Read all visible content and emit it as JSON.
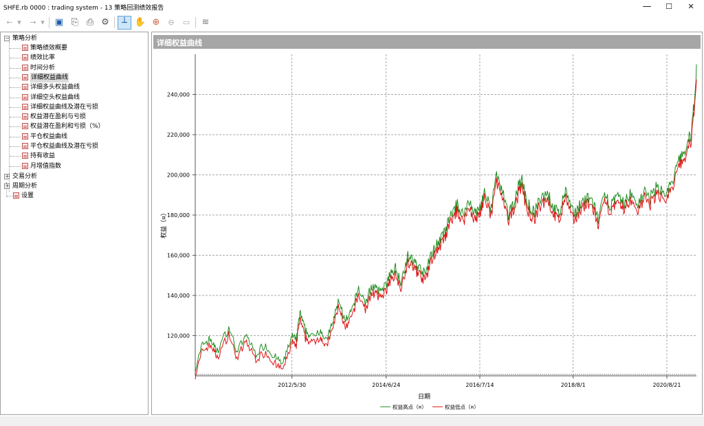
{
  "window": {
    "title": "SHFE.rb 0000 : trading system - 13 策略回测绩效报告",
    "minimize_glyph": "—",
    "maximize_glyph": "☐",
    "close_glyph": "✕"
  },
  "toolbar": {
    "icons": [
      "back-arrow-icon",
      "dropdown-icon",
      "forward-arrow-icon",
      "dropdown-icon",
      "save-icon",
      "export-icon",
      "print-icon",
      "settings-gear-icon",
      "crosshair-cursor-icon",
      "pan-hand-icon",
      "zoom-in-icon",
      "zoom-out-icon",
      "zoom-fit-icon",
      "chart-style-icon"
    ],
    "glyphs": {
      "back": "←",
      "dropdown": "▾",
      "forward": "→",
      "save": "▣",
      "export": "⎘",
      "print": "⎙",
      "settings": "⚙",
      "crosshair": "┴",
      "hand": "✋",
      "zoom_in": "⊕",
      "zoom_out": "⊖",
      "zoom_fit": "▭",
      "chart_style": "≋"
    }
  },
  "tree": {
    "root_expanded_glyph": "−",
    "collapsed_glyph": "+",
    "strategy_analysis": {
      "label": "策略分析",
      "items": [
        "策略绩效概要",
        "绩效比率",
        "时间分析",
        "详细权益曲线",
        "详细多头权益曲线",
        "详细空头权益曲线",
        "详细权益曲线及潜在亏损",
        "权益潜在盈利与亏损",
        "权益潜在盈利和亏损（%）",
        "平仓权益曲线",
        "平仓权益曲线及潜在亏损",
        "持有收益",
        "月增值指数"
      ],
      "selected_index": 3
    },
    "trade_analysis": {
      "label": "交易分析"
    },
    "period_analysis": {
      "label": "周期分析"
    },
    "settings": {
      "label": "设置"
    }
  },
  "panel": {
    "title": "详细权益曲线"
  },
  "colors": {
    "high_series": "#1e8c1e",
    "low_series": "#e01010",
    "panel_header": "#a6a6a6",
    "grid": "#8a8a8a"
  },
  "chart_data": {
    "type": "line",
    "title": "",
    "xlabel": "日期",
    "ylabel": "权益（¤）",
    "x_tick_labels": [
      "2012/5/30",
      "2014/6/24",
      "2016/7/14",
      "2018/8/1",
      "2020/8/21"
    ],
    "y_tick_labels": [
      "120,000",
      "140,000",
      "160,000",
      "180,000",
      "200,000",
      "220,000",
      "240,000"
    ],
    "y_ticks": [
      120000,
      140000,
      160000,
      180000,
      200000,
      220000,
      240000
    ],
    "ylim": [
      100000,
      260000
    ],
    "grid": true,
    "legend_position": "bottom-center",
    "x_range": [
      "2010/4/16",
      "2021/4/15"
    ],
    "x_ticks": [
      "2012/5/30",
      "2014/6/24",
      "2016/7/14",
      "2018/8/1",
      "2020/8/21"
    ],
    "series": [
      {
        "name": "权益高点（¤）",
        "color": "#1e8c1e"
      },
      {
        "name": "权益低点（¤）",
        "color": "#e01010"
      }
    ],
    "x": [
      "2010/4/16",
      "2010/6/15",
      "2010/8/20",
      "2010/10/8",
      "2011/1/10",
      "2011/3/15",
      "2011/6/1",
      "2011/8/15",
      "2011/11/1",
      "2012/1/10",
      "2012/3/20",
      "2012/5/30",
      "2012/7/1",
      "2012/8/1",
      "2012/9/15",
      "2012/11/1",
      "2013/1/15",
      "2013/3/1",
      "2013/4/20",
      "2013/6/10",
      "2013/8/1",
      "2013/9/20",
      "2013/11/15",
      "2014/1/15",
      "2014/3/1",
      "2014/4/20",
      "2014/6/24",
      "2014/7/20",
      "2014/9/1",
      "2014/10/20",
      "2014/12/15",
      "2015/2/1",
      "2015/3/15",
      "2015/5/1",
      "2015/6/20",
      "2015/8/10",
      "2015/10/1",
      "2015/11/20",
      "2016/1/10",
      "2016/3/1",
      "2016/4/20",
      "2016/6/10",
      "2016/7/14",
      "2016/8/20",
      "2016/10/10",
      "2016/11/25",
      "2017/1/15",
      "2017/3/1",
      "2017/4/20",
      "2017/6/10",
      "2017/8/1",
      "2017/9/20",
      "2017/11/10",
      "2018/1/1",
      "2018/2/20",
      "2018/4/10",
      "2018/6/1",
      "2018/8/1",
      "2018/9/20",
      "2018/11/10",
      "2019/1/1",
      "2019/2/20",
      "2019/4/10",
      "2019/6/1",
      "2019/7/20",
      "2019/9/10",
      "2019/11/1",
      "2020/1/1",
      "2020/2/20",
      "2020/4/10",
      "2020/6/1",
      "2020/8/21",
      "2020/10/10",
      "2020/12/1",
      "2021/1/20",
      "2021/3/10",
      "2021/4/15"
    ],
    "values": [
      101000,
      114000,
      116000,
      110000,
      122000,
      110000,
      118000,
      109000,
      113000,
      107000,
      104000,
      118000,
      115000,
      129000,
      120000,
      117000,
      121000,
      115000,
      124000,
      136000,
      124000,
      130000,
      141000,
      134000,
      143000,
      140000,
      143000,
      147000,
      152000,
      145000,
      157000,
      155000,
      152000,
      148000,
      158000,
      164000,
      168000,
      177000,
      183000,
      178000,
      185000,
      178000,
      182000,
      189000,
      180000,
      198000,
      188000,
      177000,
      186000,
      196000,
      183000,
      179000,
      185000,
      190000,
      182000,
      178000,
      190000,
      178000,
      183000,
      186000,
      185000,
      176000,
      187000,
      183000,
      186000,
      184000,
      188000,
      183000,
      190000,
      186000,
      192000,
      189000,
      195000,
      206000,
      210000,
      220000,
      250000
    ],
    "spread": 2500
  },
  "legend": {
    "high_label": "权益高点（¤）",
    "low_label": "权益低点（¤）"
  }
}
